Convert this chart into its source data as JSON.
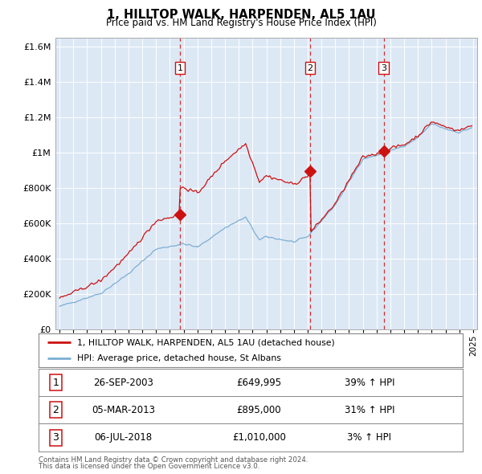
{
  "title": "1, HILLTOP WALK, HARPENDEN, AL5 1AU",
  "subtitle": "Price paid vs. HM Land Registry's House Price Index (HPI)",
  "legend_line1": "1, HILLTOP WALK, HARPENDEN, AL5 1AU (detached house)",
  "legend_line2": "HPI: Average price, detached house, St Albans",
  "footer1": "Contains HM Land Registry data © Crown copyright and database right 2024.",
  "footer2": "This data is licensed under the Open Government Licence v3.0.",
  "sales": [
    {
      "num": 1,
      "date": "26-SEP-2003",
      "price": "£649,995",
      "pct": "39% ↑ HPI",
      "x_year": 2003.73,
      "y_val": 649995
    },
    {
      "num": 2,
      "date": "05-MAR-2013",
      "price": "£895,000",
      "pct": "31% ↑ HPI",
      "x_year": 2013.17,
      "y_val": 895000
    },
    {
      "num": 3,
      "date": "06-JUL-2018",
      "price": "£1,010,000",
      "pct": "3% ↑ HPI",
      "x_year": 2018.51,
      "y_val": 1010000
    }
  ],
  "hpi_color": "#7bafd4",
  "sale_color": "#cc1111",
  "vline_color": "#cc1111",
  "background_color": "#dde8f5",
  "ylim": [
    0,
    1650000
  ],
  "xlim_start": 1994.7,
  "xlim_end": 2025.3,
  "yticks": [
    0,
    200000,
    400000,
    600000,
    800000,
    1000000,
    1200000,
    1400000,
    1600000
  ]
}
